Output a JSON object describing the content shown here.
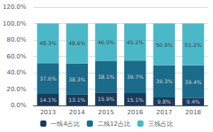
{
  "chart_data": {
    "type": "bar",
    "stacked": true,
    "categories": [
      "2013",
      "2014",
      "2015",
      "2016",
      "2017",
      "2018"
    ],
    "series": [
      {
        "name": "一线4占比",
        "color": "#1a3a5c",
        "values": [
          14.1,
          13.1,
          15.9,
          15.1,
          9.8,
          9.4
        ],
        "value_labels": [
          "14.1%",
          "13.1%",
          "15.9%",
          "15.1%",
          "9.8%",
          "9.4%"
        ]
      },
      {
        "name": "二线12占比",
        "color": "#1b6b8a",
        "values": [
          37.6,
          38.3,
          38.1,
          39.7,
          39.3,
          39.4
        ],
        "value_labels": [
          "37.6%",
          "38.3%",
          "38.1%",
          "39.7%",
          "39.3%",
          "39.4%"
        ]
      },
      {
        "name": "三线占比",
        "color": "#4bb8c8",
        "values": [
          48.3,
          48.6,
          46.0,
          45.2,
          50.9,
          51.2
        ],
        "value_labels": [
          "48.3%",
          "48.6%",
          "46.0%",
          "45.2%",
          "50.9%",
          "51.2%"
        ]
      }
    ],
    "ylim": [
      0,
      120
    ],
    "yticks": [
      {
        "value": 0,
        "label": "0.0%"
      },
      {
        "value": 20,
        "label": "20.0%"
      },
      {
        "value": 40,
        "label": "40.0%"
      },
      {
        "value": 60,
        "label": "60.0%"
      },
      {
        "value": 80,
        "label": "80.0%"
      },
      {
        "value": 100,
        "label": "100.0%"
      },
      {
        "value": 120,
        "label": "120.0%"
      }
    ],
    "grid": true,
    "legend": "bottom",
    "data_labels": true
  }
}
